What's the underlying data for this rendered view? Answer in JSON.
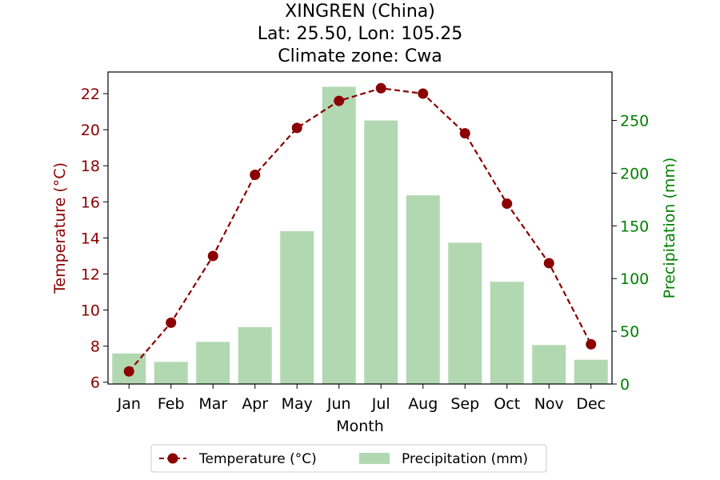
{
  "chart_data": {
    "type": "bar+line",
    "title_lines": [
      "XINGREN (China)",
      "Lat: 25.50, Lon: 105.25",
      "Climate zone: Cwa"
    ],
    "categories": [
      "Jan",
      "Feb",
      "Mar",
      "Apr",
      "May",
      "Jun",
      "Jul",
      "Aug",
      "Sep",
      "Oct",
      "Nov",
      "Dec"
    ],
    "xlabel": "Month",
    "ylabel_left": "Temperature (°C)",
    "ylabel_right": "Precipitation (mm)",
    "ylim_left": [
      5.9,
      23.2
    ],
    "ylim_right": [
      0,
      296
    ],
    "yticks_left": [
      "6",
      "8",
      "10",
      "12",
      "14",
      "16",
      "18",
      "20",
      "22"
    ],
    "yticks_right": [
      "0",
      "50",
      "100",
      "150",
      "200",
      "250"
    ],
    "series": [
      {
        "name": "Temperature (°C)",
        "kind": "line",
        "axis": "left",
        "color": "#8b0000",
        "style": "dashed-marker",
        "values": [
          6.6,
          9.3,
          13.0,
          17.5,
          20.1,
          21.6,
          22.3,
          22.0,
          19.8,
          15.9,
          12.6,
          8.1
        ]
      },
      {
        "name": "Precipitation (mm)",
        "kind": "bar",
        "axis": "right",
        "color": "#b2d8b2",
        "values": [
          29,
          21,
          40,
          54,
          145,
          282,
          250,
          179,
          134,
          97,
          37,
          23
        ]
      }
    ],
    "legend_position": "bottom-center",
    "grid": false
  }
}
